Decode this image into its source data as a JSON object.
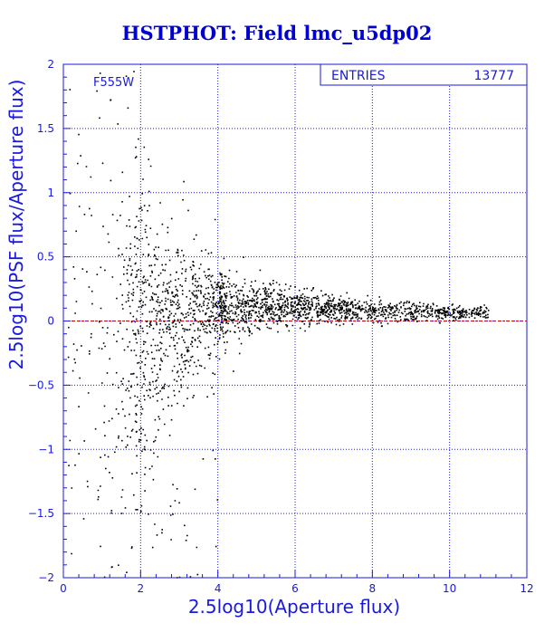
{
  "title": "HSTPHOT: Field lmc_u5dp02",
  "filter_label": "F555W",
  "stats": {
    "label": "ENTRIES",
    "value": "13777"
  },
  "colors": {
    "axis": "#1a1adc",
    "grid": "#1a1adc",
    "points": "#000000",
    "zero_line": "#cc0000",
    "title": "#0000d0"
  },
  "chart_data": {
    "type": "scatter",
    "xlabel": "2.5log10(Aperture flux)",
    "ylabel": "2.5log10(PSF flux/Aperture flux)",
    "xlim": [
      0,
      12
    ],
    "ylim": [
      -2,
      2
    ],
    "xticks": [
      0,
      2,
      4,
      6,
      8,
      10,
      12
    ],
    "yticks": [
      -2,
      -1.5,
      -1,
      -0.5,
      0,
      0.5,
      1,
      1.5,
      2
    ],
    "ytick_labels": [
      "−2",
      "−1.5",
      "−1",
      "−0.5",
      "0",
      "0.5",
      "1",
      "1.5",
      "2"
    ],
    "grid": true,
    "reference_line_y": 0,
    "entries": 13777,
    "shape": [
      [
        0.4,
        0.0,
        1.5
      ],
      [
        0.8,
        0.0,
        1.4
      ],
      [
        1.2,
        0.0,
        1.1
      ],
      [
        1.6,
        0.0,
        0.85
      ],
      [
        2.0,
        0.0,
        0.65
      ],
      [
        2.4,
        0.02,
        0.5
      ],
      [
        2.8,
        0.05,
        0.38
      ],
      [
        3.2,
        0.07,
        0.3
      ],
      [
        3.6,
        0.09,
        0.22
      ],
      [
        4.0,
        0.1,
        0.17
      ],
      [
        4.5,
        0.11,
        0.13
      ],
      [
        5.0,
        0.11,
        0.1
      ],
      [
        6.0,
        0.11,
        0.075
      ],
      [
        7.0,
        0.1,
        0.06
      ],
      [
        8.0,
        0.09,
        0.05
      ],
      [
        9.0,
        0.08,
        0.04
      ],
      [
        10.0,
        0.07,
        0.03
      ],
      [
        10.8,
        0.07,
        0.025
      ]
    ]
  }
}
